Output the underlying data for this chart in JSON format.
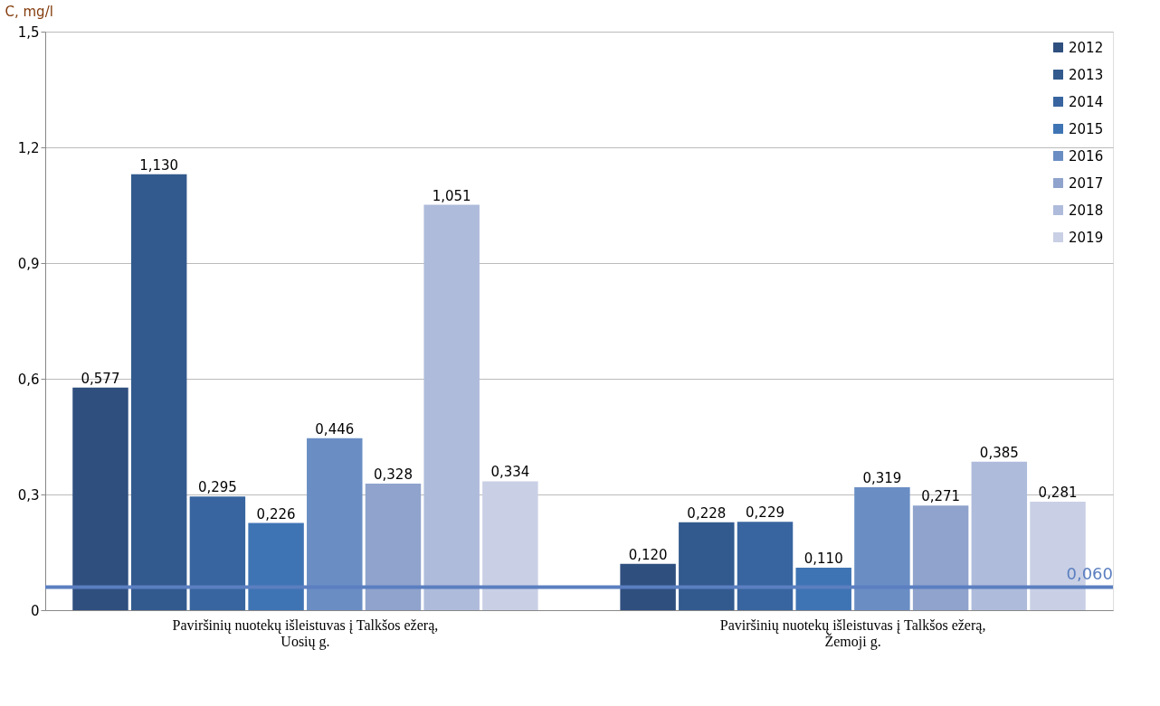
{
  "chart_data": {
    "type": "bar",
    "ylabel": "C, mg/l",
    "categories": [
      "Paviršinių nuotekų išleistuvas į Talkšos ežerą, Uosių g.",
      "Paviršinių nuotekų išleistuvas į Talkšos ežerą, Žemoji g."
    ],
    "series": [
      {
        "name": "2012",
        "color": "#2f4f7f",
        "values": [
          0.577,
          0.12
        ],
        "value_labels": [
          "0,577",
          "0,120"
        ]
      },
      {
        "name": "2013",
        "color": "#325a8e",
        "values": [
          1.13,
          0.228
        ],
        "value_labels": [
          "1,130",
          "0,228"
        ]
      },
      {
        "name": "2014",
        "color": "#38659f",
        "values": [
          0.295,
          0.229
        ],
        "value_labels": [
          "0,295",
          "0,229"
        ]
      },
      {
        "name": "2015",
        "color": "#3f74b4",
        "values": [
          0.226,
          0.11
        ],
        "value_labels": [
          "0,226",
          "0,110"
        ]
      },
      {
        "name": "2016",
        "color": "#6a8ec4",
        "values": [
          0.446,
          0.319
        ],
        "value_labels": [
          "0,446",
          "0,319"
        ]
      },
      {
        "name": "2017",
        "color": "#8fa3cc",
        "values": [
          0.328,
          0.271
        ],
        "value_labels": [
          "0,328",
          "0,271"
        ]
      },
      {
        "name": "2018",
        "color": "#aebbdb",
        "values": [
          1.051,
          0.385
        ],
        "value_labels": [
          "1,051",
          "0,385"
        ]
      },
      {
        "name": "2019",
        "color": "#c9d0e5",
        "values": [
          0.334,
          0.281
        ],
        "value_labels": [
          "0,334",
          "0,281"
        ]
      }
    ],
    "ylim": [
      0,
      1.5
    ],
    "yticks": [
      0,
      {
        "value": 0.3,
        "label": "0,3"
      },
      {
        "value": 0.6,
        "label": "0,6"
      },
      {
        "value": 0.9,
        "label": "0,9"
      },
      {
        "value": 1.2,
        "label": "1,2"
      },
      {
        "value": 1.5,
        "label": "1,5"
      }
    ],
    "ref_lines": [
      {
        "axis": "y",
        "value": 0.06,
        "label": "0,060",
        "color": "#5b7fc0"
      }
    ],
    "grid": "y",
    "legend": "top right"
  }
}
